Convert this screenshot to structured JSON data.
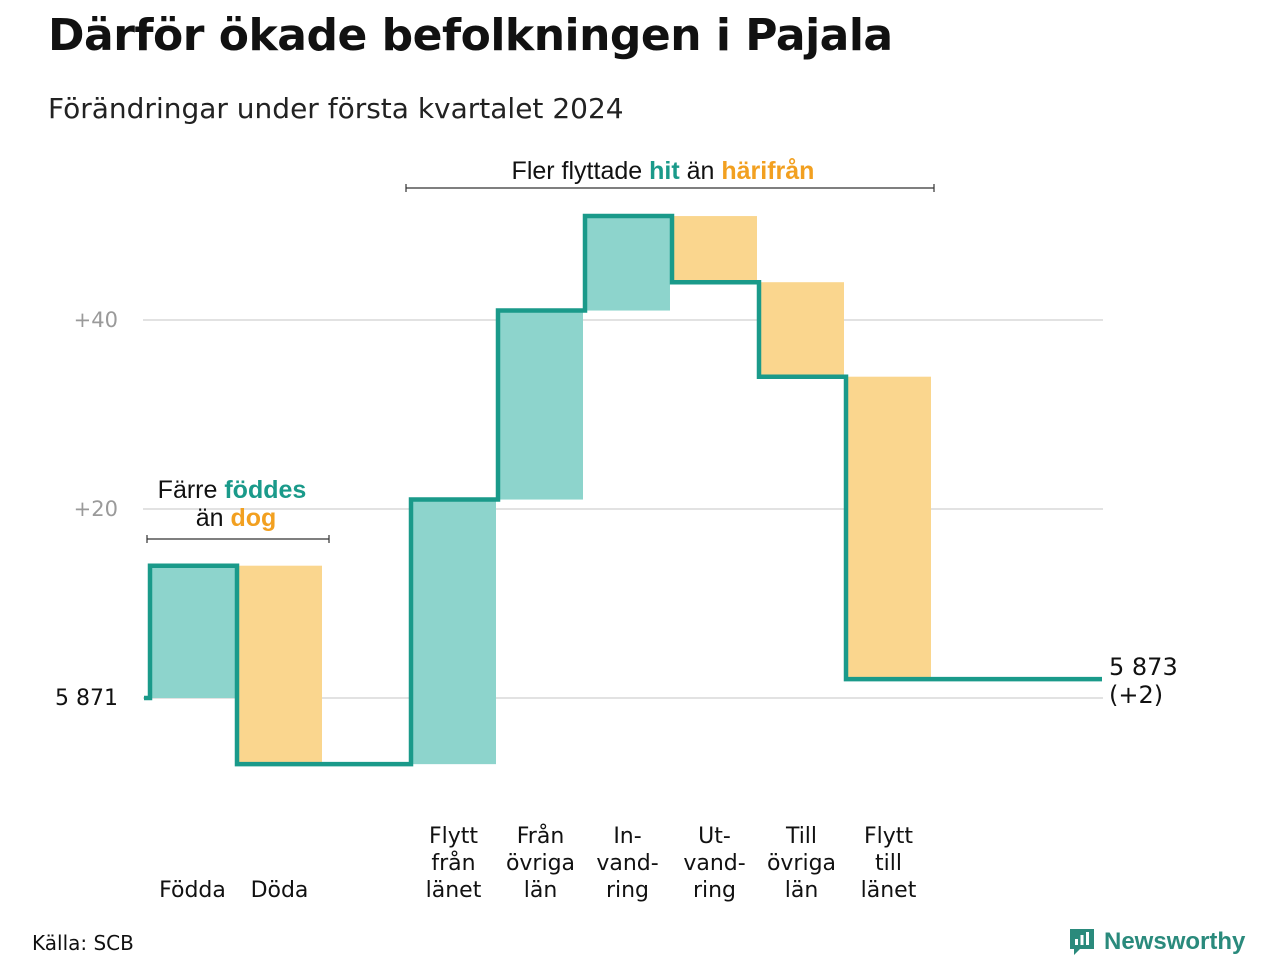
{
  "title": "Därför ökade befolkningen i Pajala",
  "subtitle": "Förändringar under första kvartalet 2024",
  "source": "Källa: SCB",
  "brand": "Newsworthy",
  "colors": {
    "increase": "#8dd4cc",
    "decrease": "#fad68e",
    "line": "#1a9a8a",
    "grid": "#e2e2e2",
    "up_text": "#1a9a8a",
    "down_text": "#f2a020"
  },
  "annotations": {
    "natural": {
      "line1_pre": "Färre ",
      "line1_up": "föddes",
      "line2_pre": "än ",
      "line2_down": "dog"
    },
    "migration": {
      "pre": "Fler flyttade ",
      "up": "hit",
      "mid": " än ",
      "down": "härifrån"
    }
  },
  "chart_data": {
    "type": "waterfall",
    "start_label": "5 871",
    "end_label_value": "5 873",
    "end_label_change": "(+2)",
    "start_value": 5871,
    "end_value": 5873,
    "y_ticks": [
      {
        "value": 0,
        "label": "5 871"
      },
      {
        "value": 20,
        "label": "+20"
      },
      {
        "value": 40,
        "label": "+40"
      }
    ],
    "steps": [
      {
        "label_lines": [
          "Födda"
        ],
        "change": 14
      },
      {
        "label_lines": [
          "Döda"
        ],
        "change": -21
      },
      {
        "label_lines": [],
        "change": 0
      },
      {
        "label_lines": [
          "Flytt",
          "från",
          "länet"
        ],
        "change": 28
      },
      {
        "label_lines": [
          "Från",
          "övriga",
          "län"
        ],
        "change": 20
      },
      {
        "label_lines": [
          "In-",
          "vand-",
          "ring"
        ],
        "change": 10
      },
      {
        "label_lines": [
          "Ut-",
          "vand-",
          "ring"
        ],
        "change": -7
      },
      {
        "label_lines": [
          "Till",
          "övriga",
          "län"
        ],
        "change": -10
      },
      {
        "label_lines": [
          "Flytt",
          "till",
          "länet"
        ],
        "change": -32
      }
    ]
  }
}
